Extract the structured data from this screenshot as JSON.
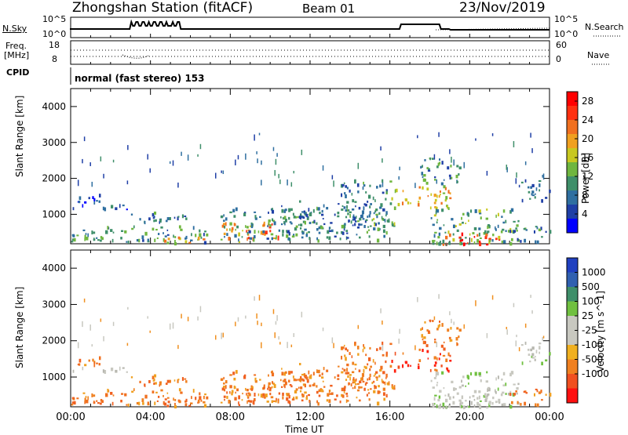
{
  "header": {
    "station": "Zhongshan Station (fitACF)",
    "beam": "Beam 01",
    "date": "23/Nov/2019"
  },
  "nsky_panel": {
    "left_label": "N.Sky",
    "left_ticks": [
      "10^5",
      "10^0"
    ],
    "right_label": "N.Search",
    "right_ticks": [
      "10^5",
      "10^0"
    ]
  },
  "freq_panel": {
    "left_label_1": "Freq.",
    "left_label_2": "[MHz]",
    "left_ticks": [
      "18",
      "8"
    ],
    "right_label": "Nave",
    "right_ticks": [
      "60",
      "0"
    ]
  },
  "cpid": {
    "label": "CPID",
    "text": "normal (fast stereo) 153"
  },
  "colors": {
    "power_scale": [
      "#0000ff",
      "#1f3fa6",
      "#2f6fa0",
      "#3f8f6a",
      "#6fb63f",
      "#c8c820",
      "#f0a020",
      "#f07020",
      "#ff3010",
      "#ff0000"
    ],
    "velocity_scale": [
      "#2040c0",
      "#3060b0",
      "#3f8f6a",
      "#70c040",
      "#c8c8c0",
      "#c8c8c0",
      "#f0b020",
      "#f08020",
      "#f05020",
      "#ff1010"
    ]
  },
  "chart_data": [
    {
      "type": "heatmap",
      "title": "",
      "xlabel": "",
      "ylabel": "Slant Range [km]",
      "ylim": [
        180,
        4500
      ],
      "x_ticks": [
        "00:00",
        "04:00",
        "08:00",
        "12:00",
        "16:00",
        "20:00",
        "00:00"
      ],
      "y_ticks": [
        "1000",
        "2000",
        "3000",
        "4000"
      ],
      "colorbar_label": "Power [dB]",
      "colorbar_ticks": [
        "28",
        "24",
        "20",
        "16",
        "12",
        "8",
        "4"
      ],
      "colorbar_range": [
        0,
        30
      ]
    },
    {
      "type": "heatmap",
      "title": "",
      "xlabel": "Time UT",
      "ylabel": "Slant Range [km]",
      "ylim": [
        180,
        4500
      ],
      "x_ticks": [
        "00:00",
        "04:00",
        "08:00",
        "12:00",
        "16:00",
        "20:00",
        "00:00"
      ],
      "y_ticks": [
        "1000",
        "2000",
        "3000",
        "4000"
      ],
      "colorbar_label": "Velocity [m s^-1]",
      "colorbar_ticks": [
        "1000",
        "500",
        "100",
        "25",
        "-25",
        "-100",
        "-500",
        "-1000"
      ]
    }
  ]
}
